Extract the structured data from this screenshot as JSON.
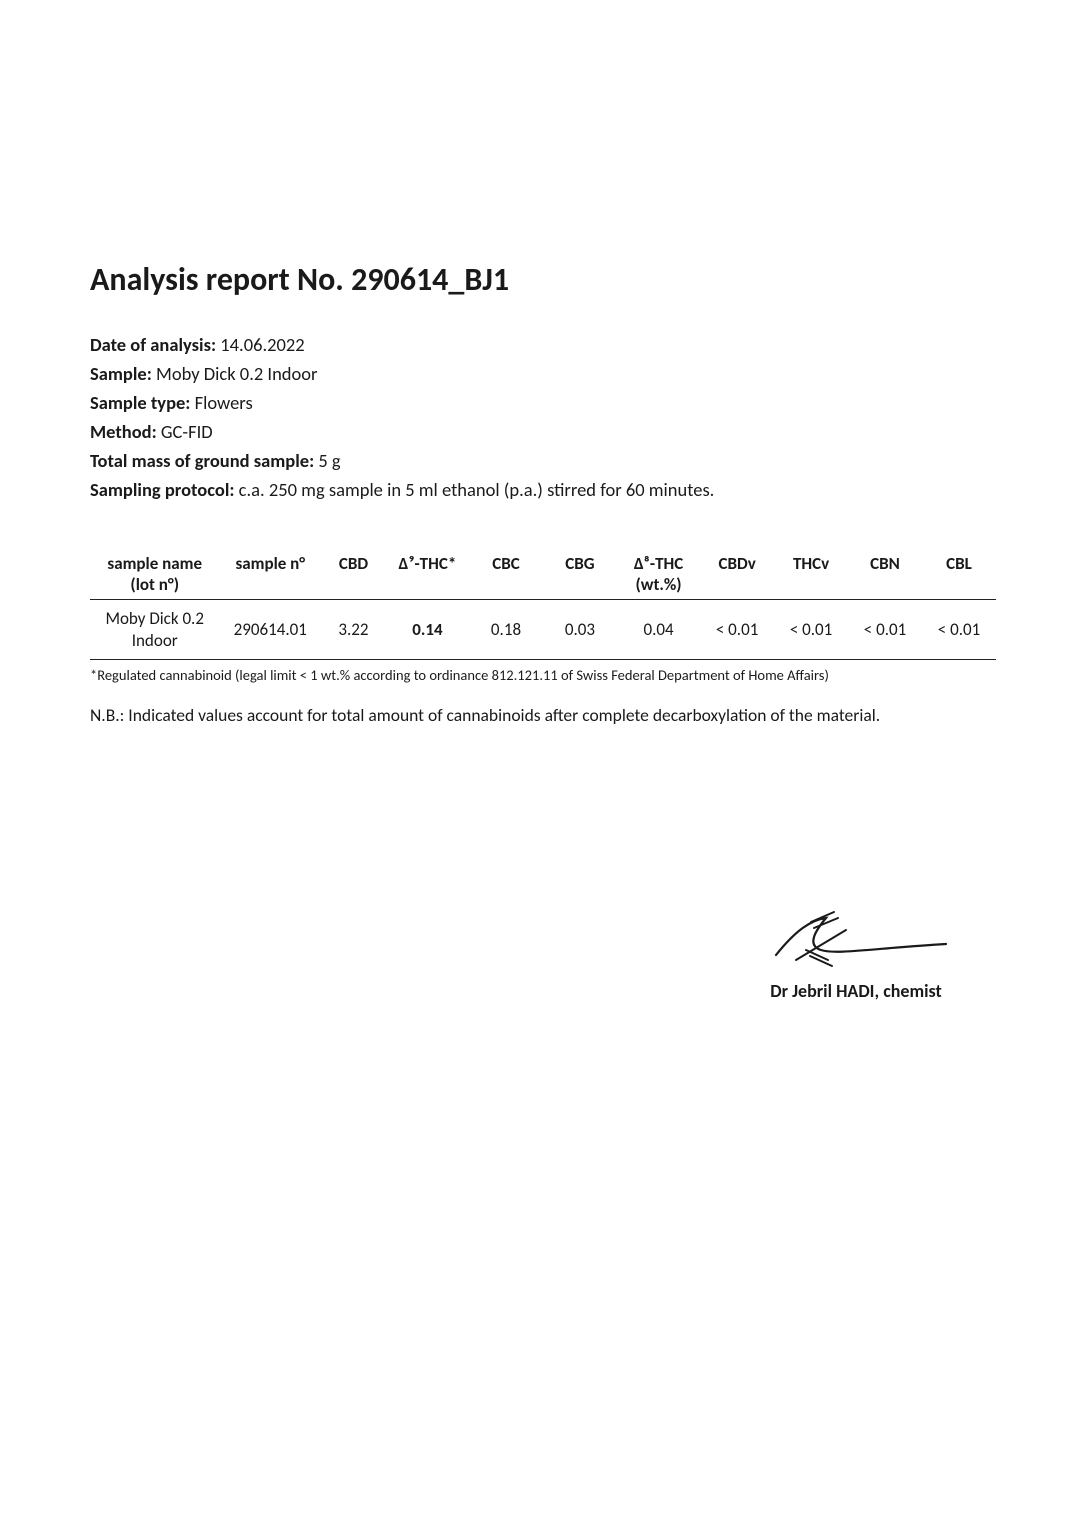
{
  "title": "Analysis report No. 290614_BJ1",
  "meta": {
    "date_label": "Date of analysis:",
    "date_value": "14.06.2022",
    "sample_label": "Sample:",
    "sample_value": " Moby Dick 0.2 Indoor",
    "sample_type_label": "Sample type:",
    "sample_type_value": "Flowers",
    "method_label": "Method:",
    "method_value": "GC-FID",
    "mass_label": "Total mass of ground sample:",
    "mass_value": "5 g",
    "protocol_label": "Sampling protocol:",
    "protocol_value": "c.a.  250 mg sample in 5 ml ethanol (p.a.) stirred for 60 minutes."
  },
  "table": {
    "columns": [
      {
        "key": "name",
        "label_top": "sample name",
        "label_bot": "(lot n°)",
        "width": "14%",
        "bold": false
      },
      {
        "key": "sampleno",
        "label_top": "sample n°",
        "label_bot": "",
        "width": "11%",
        "bold": false
      },
      {
        "key": "cbd",
        "label_top": "CBD",
        "label_bot": "",
        "width": "7%",
        "bold": false
      },
      {
        "key": "d9",
        "label_top": "Δ⁹-THC*",
        "label_bot": "",
        "width": "9%",
        "bold": true
      },
      {
        "key": "cbc",
        "label_top": "CBC",
        "label_bot": "",
        "width": "8%",
        "bold": false
      },
      {
        "key": "cbg",
        "label_top": "CBG",
        "label_bot": "",
        "width": "8%",
        "bold": false
      },
      {
        "key": "d8",
        "label_top": "Δ⁸-THC",
        "label_bot": "(wt.%)",
        "width": "9%",
        "bold": false
      },
      {
        "key": "cbdv",
        "label_top": "CBDv",
        "label_bot": "",
        "width": "8%",
        "bold": false
      },
      {
        "key": "thcv",
        "label_top": "THCv",
        "label_bot": "",
        "width": "8%",
        "bold": false
      },
      {
        "key": "cbn",
        "label_top": "CBN",
        "label_bot": "",
        "width": "8%",
        "bold": false
      },
      {
        "key": "cbl",
        "label_top": "CBL",
        "label_bot": "",
        "width": "8%",
        "bold": false
      }
    ],
    "row": {
      "name": "Moby Dick 0.2 Indoor",
      "sampleno": "290614.01",
      "cbd": "3.22",
      "d9": "0.14",
      "cbc": "0.18",
      "cbg": "0.03",
      "d8": "0.04",
      "cbdv": "< 0.01",
      "thcv": "< 0.01",
      "cbn": "< 0.01",
      "cbl": "< 0.01"
    }
  },
  "footnote": "*Regulated cannabinoid (legal limit < 1 wt.% according to ordinance 812.121.11 of Swiss Federal Department of Home Affairs)",
  "nb": "N.B.: Indicated values account for total amount of cannabinoids after complete decarboxylation of the material.",
  "signature": {
    "name": "Dr Jebril HADI, chemist",
    "stroke_color": "#1a1a1a"
  },
  "colors": {
    "background": "#ffffff",
    "text": "#1a1a1a",
    "border": "#222222"
  }
}
